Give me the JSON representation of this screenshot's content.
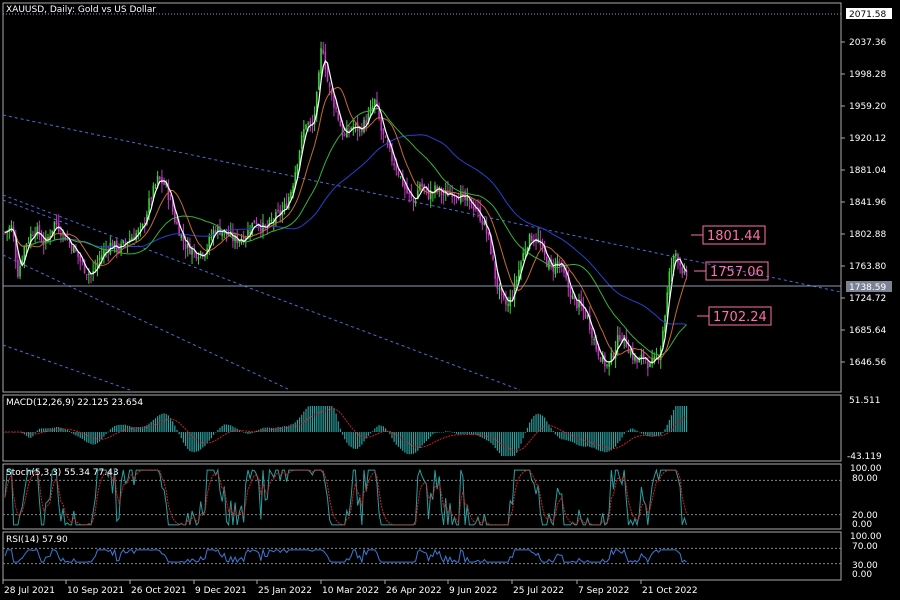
{
  "main": {
    "title": "XAUUSD, Daily:  Gold vs US Dollar",
    "y_ticks": [
      "2037.36",
      "1998.28",
      "1959.20",
      "1920.12",
      "1881.04",
      "1841.96",
      "1802.88",
      "1763.80",
      "1724.72",
      "1685.64",
      "1646.56"
    ],
    "top_price": "2071.58",
    "current_price": "1738.59",
    "levels": [
      {
        "label": "1801.44",
        "value": 1801.44
      },
      {
        "label": "1757.06",
        "value": 1757.06
      },
      {
        "label": "1702.24",
        "value": 1702.24
      }
    ]
  },
  "macd": {
    "header": "MACD(12,26,9) 22.125 23.654",
    "ticks": [
      "51.511",
      "-43.119"
    ]
  },
  "stoch": {
    "header": "Stoch(5,3,3) 55.34 77.43",
    "ticks": [
      "100.00",
      "80.00",
      "20.00",
      "0.00"
    ]
  },
  "rsi": {
    "header": "RSI(14) 57.90",
    "ticks": [
      "100.00",
      "70.00",
      "30.00",
      "0.00"
    ]
  },
  "x_labels": [
    "28 Jul 2021",
    "10 Sep 2021",
    "26 Oct 2021",
    "9 Dec 2021",
    "25 Jan 2022",
    "10 Mar 2022",
    "26 Apr 2022",
    "9 Jun 2022",
    "25 Jul 2022",
    "7 Sep 2022",
    "21 Oct 2022"
  ],
  "colors": {
    "bull": "#3fd13f",
    "bear": "#c239c2",
    "ma_fast": "#ffffff",
    "ma_mid": "#c86a2a",
    "ma_slow": "#35b435",
    "ma_long": "#2a3fd0",
    "channel": "#4a6cd8",
    "level_tag": "#ff6fa8",
    "macd_hist": "#2aa0a0",
    "macd_signal": "#d02020",
    "stoch_main": "#2aa0a0",
    "stoch_signal": "#d02020",
    "rsi_line": "#3a7ad8"
  }
}
